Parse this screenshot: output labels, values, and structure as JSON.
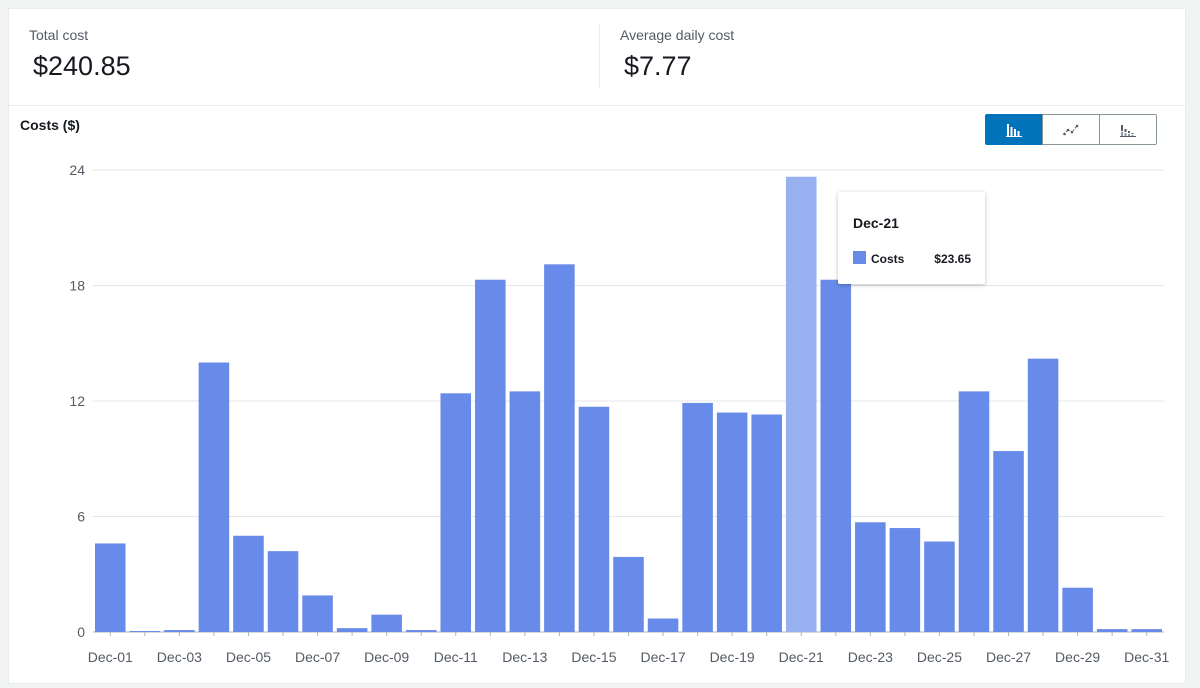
{
  "summary": {
    "total_cost_label": "Total cost",
    "total_cost_value": "$240.85",
    "avg_daily_cost_label": "Average daily cost",
    "avg_daily_cost_value": "$7.77"
  },
  "chart_controls": {
    "options": [
      {
        "name": "bar-chart-icon",
        "active": true
      },
      {
        "name": "line-chart-icon",
        "active": false
      },
      {
        "name": "stacked-bar-chart-icon",
        "active": false
      }
    ],
    "active_color": "#0073bb"
  },
  "tooltip": {
    "title": "Dec-21",
    "series_name": "Costs",
    "value": "$23.65"
  },
  "chart_data": {
    "type": "bar",
    "title": "Costs ($)",
    "xlabel": "",
    "ylabel": "",
    "ylim": [
      0,
      24
    ],
    "yticks": [
      0,
      6,
      12,
      18,
      24
    ],
    "grid": true,
    "bar_color": "#688ae8",
    "highlight_color": "#99b0f0",
    "highlight_index": 20,
    "categories": [
      "Dec-01",
      "Dec-02",
      "Dec-03",
      "Dec-04",
      "Dec-05",
      "Dec-06",
      "Dec-07",
      "Dec-08",
      "Dec-09",
      "Dec-10",
      "Dec-11",
      "Dec-12",
      "Dec-13",
      "Dec-14",
      "Dec-15",
      "Dec-16",
      "Dec-17",
      "Dec-18",
      "Dec-19",
      "Dec-20",
      "Dec-21",
      "Dec-22",
      "Dec-23",
      "Dec-24",
      "Dec-25",
      "Dec-26",
      "Dec-27",
      "Dec-28",
      "Dec-29",
      "Dec-30",
      "Dec-31"
    ],
    "xtick_labels": [
      "Dec-01",
      "",
      "Dec-03",
      "",
      "Dec-05",
      "",
      "Dec-07",
      "",
      "Dec-09",
      "",
      "Dec-11",
      "",
      "Dec-13",
      "",
      "Dec-15",
      "",
      "Dec-17",
      "",
      "Dec-19",
      "",
      "Dec-21",
      "",
      "Dec-23",
      "",
      "Dec-25",
      "",
      "Dec-27",
      "",
      "Dec-29",
      "",
      "Dec-31"
    ],
    "series": [
      {
        "values": [
          4.6,
          0.05,
          0.1,
          14.0,
          5.0,
          4.2,
          1.9,
          0.2,
          0.9,
          0.1,
          12.4,
          18.3,
          12.5,
          19.1,
          11.7,
          3.9,
          0.7,
          11.9,
          11.4,
          11.3,
          23.65,
          18.3,
          5.7,
          5.4,
          4.7,
          12.5,
          9.4,
          14.2,
          2.3,
          0.15,
          0.15
        ]
      }
    ]
  }
}
